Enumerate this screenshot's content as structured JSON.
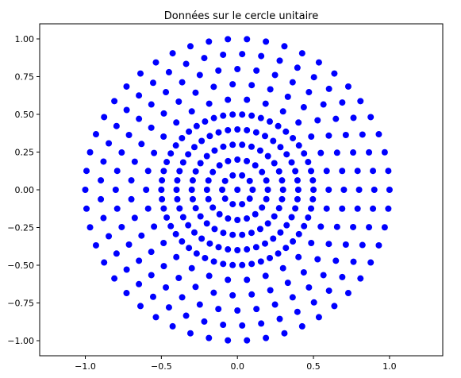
{
  "chart_data": {
    "type": "scatter",
    "title": "Données sur le cercle unitaire",
    "xlabel": "",
    "ylabel": "",
    "xlim": [
      -1.3,
      1.35
    ],
    "ylim": [
      -1.1,
      1.1
    ],
    "grid": false,
    "marker_color": "#0000ff",
    "xticks": [
      -1.0,
      -0.5,
      0.0,
      0.5,
      1.0
    ],
    "xtick_labels": [
      "−1.0",
      "−0.5",
      "0.0",
      "0.5",
      "1.0"
    ],
    "yticks": [
      1.0,
      0.75,
      0.5,
      0.25,
      0.0,
      -0.25,
      -0.5,
      -0.75,
      -1.0
    ],
    "ytick_labels": [
      "1.00",
      "0.75",
      "0.50",
      "0.25",
      "0.00",
      "−0.25",
      "−0.50",
      "−0.75",
      "−1.00"
    ],
    "rings": [
      {
        "radius": 0.0,
        "points": 1
      },
      {
        "radius": 0.1,
        "points": 10
      },
      {
        "radius": 0.2,
        "points": 20
      },
      {
        "radius": 0.3,
        "points": 30
      },
      {
        "radius": 0.4,
        "points": 40
      },
      {
        "radius": 0.5,
        "points": 50
      },
      {
        "radius": 0.6,
        "points": 30
      },
      {
        "radius": 0.7,
        "points": 35
      },
      {
        "radius": 0.8,
        "points": 40
      },
      {
        "radius": 0.9,
        "points": 45
      },
      {
        "radius": 1.0,
        "points": 50
      }
    ]
  }
}
